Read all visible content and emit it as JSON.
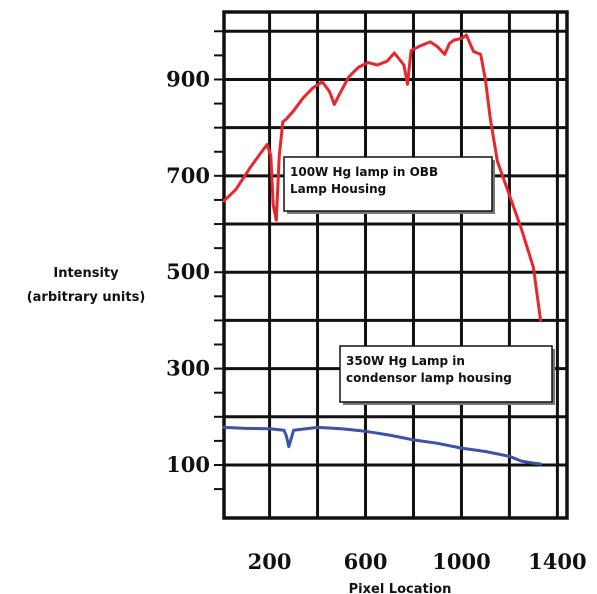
{
  "chart_data": {
    "type": "line",
    "title": "",
    "xlabel": "Pixel Location",
    "ylabel_lines": [
      "Intensity",
      "(arbitrary units)"
    ],
    "xlim": [
      10,
      1440
    ],
    "ylim": [
      -10,
      1040
    ],
    "x_ticks": [
      200,
      600,
      1000,
      1400
    ],
    "y_ticks": [
      100,
      300,
      500,
      700,
      900
    ],
    "grid": true,
    "series": [
      {
        "color": "#e8262b",
        "x": [
          10,
          60,
          120,
          170,
          190,
          205,
          215,
          228,
          240,
          255,
          270,
          300,
          340,
          380,
          420,
          450,
          470,
          490,
          530,
          570,
          610,
          650,
          690,
          720,
          760,
          775,
          790,
          830,
          870,
          900,
          930,
          950,
          970,
          1000,
          1020,
          1035,
          1050,
          1080,
          1100,
          1120,
          1150,
          1200,
          1250,
          1300,
          1315,
          1330
        ],
        "values": [
          648,
          672,
          718,
          752,
          765,
          742,
          640,
          608,
          740,
          812,
          818,
          835,
          862,
          882,
          895,
          875,
          848,
          868,
          905,
          925,
          935,
          930,
          938,
          955,
          930,
          890,
          960,
          970,
          978,
          968,
          952,
          975,
          982,
          985,
          992,
          975,
          958,
          952,
          900,
          820,
          730,
          660,
          590,
          510,
          455,
          400
        ]
      },
      {
        "color": "#3d52a8",
        "x": [
          10,
          100,
          200,
          260,
          270,
          280,
          300,
          400,
          500,
          600,
          700,
          800,
          900,
          1000,
          1100,
          1200,
          1250,
          1300,
          1330
        ],
        "values": [
          178,
          176,
          175,
          172,
          160,
          138,
          172,
          178,
          175,
          170,
          162,
          152,
          145,
          135,
          128,
          118,
          108,
          104,
          102
        ]
      }
    ],
    "annotations": [
      {
        "lines": [
          "100W Hg lamp in OBB",
          "Lamp Housing"
        ]
      },
      {
        "lines": [
          "350W Hg Lamp in",
          "condensor lamp housing"
        ]
      }
    ]
  }
}
